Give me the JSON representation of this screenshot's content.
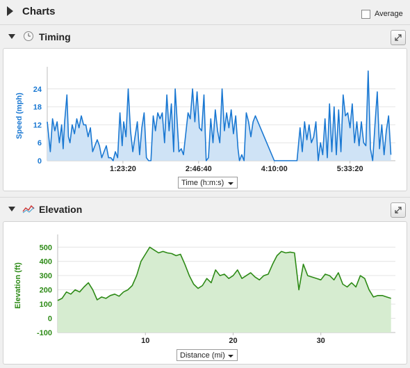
{
  "header": {
    "title": "Charts",
    "average_label": "Average",
    "average_checked": false
  },
  "timing": {
    "title": "Timing",
    "x_select": "Time (h:m:s)",
    "chart_data": {
      "type": "area",
      "ylabel": "Speed (mph)",
      "ylim": [
        0,
        30
      ],
      "yticks": [
        0,
        6,
        12,
        18,
        24
      ],
      "xticks": [
        {
          "label": "1:23:20",
          "value": 5000
        },
        {
          "label": "2:46:40",
          "value": 10000
        },
        {
          "label": "4:10:00",
          "value": 15000
        },
        {
          "label": "5:33:20",
          "value": 20000
        }
      ],
      "xlim": [
        0,
        23000
      ],
      "color": "#1a78d2",
      "fill": "#cfe3f6",
      "x": [
        0,
        200,
        350,
        500,
        650,
        800,
        950,
        1050,
        1150,
        1300,
        1400,
        1500,
        1650,
        1800,
        1950,
        2100,
        2250,
        2400,
        2550,
        2700,
        2850,
        3000,
        3150,
        3300,
        3450,
        3600,
        3750,
        3900,
        4050,
        4200,
        4350,
        4500,
        4650,
        4800,
        4950,
        5050,
        5200,
        5350,
        5500,
        5650,
        5800,
        5950,
        6100,
        6250,
        6400,
        6550,
        6700,
        6850,
        7000,
        7150,
        7300,
        7450,
        7600,
        7750,
        7900,
        8050,
        8200,
        8350,
        8450,
        8550,
        8700,
        8850,
        9000,
        9150,
        9300,
        9450,
        9600,
        9750,
        9900,
        10050,
        10200,
        10350,
        10500,
        10650,
        10800,
        10950,
        11100,
        11250,
        11400,
        11550,
        11700,
        11850,
        12000,
        12150,
        12300,
        12450,
        12600,
        12700,
        12850,
        13000,
        13150,
        13300,
        13450,
        13600,
        13750,
        15000,
        16500,
        16700,
        16850,
        17000,
        17150,
        17300,
        17450,
        17600,
        17750,
        17900,
        18050,
        18200,
        18350,
        18500,
        18650,
        18800,
        18950,
        19100,
        19250,
        19400,
        19550,
        19700,
        19850,
        20000,
        20150,
        20300,
        20450,
        20600,
        20750,
        20900,
        21050,
        21200,
        21350,
        21500,
        21650,
        21800,
        21950,
        22100,
        22250,
        22400,
        22550,
        22700
      ],
      "y": [
        13,
        3,
        14,
        10,
        13,
        6,
        12,
        4,
        13,
        22,
        8,
        6,
        12,
        9,
        14,
        11,
        15,
        12,
        12,
        8,
        11,
        3,
        5,
        7,
        5,
        1,
        3,
        5,
        1,
        1,
        0,
        3,
        1,
        16,
        5,
        13,
        8,
        24,
        10,
        3,
        8,
        13,
        2,
        11,
        16,
        1,
        0,
        0,
        15,
        10,
        16,
        14,
        16,
        6,
        22,
        10,
        19,
        3,
        24,
        16,
        3,
        4,
        2,
        9,
        16,
        14,
        24,
        13,
        23,
        11,
        10,
        22,
        0,
        1,
        14,
        6,
        17,
        10,
        6,
        24,
        10,
        16,
        11,
        17,
        9,
        15,
        4,
        0,
        2,
        0,
        16,
        13,
        8,
        13,
        15,
        0,
        0,
        11,
        3,
        13,
        7,
        12,
        6,
        8,
        13,
        0,
        6,
        2,
        14,
        1,
        19,
        3,
        18,
        2,
        17,
        3,
        22,
        15,
        16,
        11,
        19,
        6,
        13,
        5,
        13,
        6,
        5,
        30,
        4,
        0,
        12,
        23,
        4,
        12,
        2,
        10,
        15,
        2
      ]
    }
  },
  "elevation": {
    "title": "Elevation",
    "x_select": "Distance (mi)",
    "chart_data": {
      "type": "area",
      "ylabel": "Elevation (ft)",
      "ylim": [
        -100,
        560
      ],
      "yticks": [
        -100,
        0,
        100,
        200,
        300,
        400,
        500
      ],
      "xticks": [
        10,
        20,
        30
      ],
      "xlim": [
        0,
        38.5
      ],
      "color": "#2d8a16",
      "fill": "#d6ecd0",
      "x": [
        0,
        0.5,
        1,
        1.5,
        2,
        2.5,
        3,
        3.5,
        4,
        4.5,
        5,
        5.5,
        6,
        6.5,
        7,
        7.5,
        8,
        8.5,
        9,
        9.5,
        10,
        10.5,
        11,
        11.5,
        12,
        12.5,
        13,
        13.5,
        14,
        14.5,
        15,
        15.5,
        16,
        16.5,
        17,
        17.5,
        18,
        18.5,
        19,
        19.5,
        20,
        20.5,
        21,
        21.5,
        22,
        22.5,
        23,
        23.5,
        24,
        24.5,
        25,
        25.5,
        26,
        26.5,
        27,
        27.5,
        28,
        28.5,
        29,
        29.5,
        30,
        30.5,
        31,
        31.5,
        32,
        32.5,
        33,
        33.5,
        34,
        34.5,
        35,
        35.5,
        36,
        36.5,
        37,
        37.5,
        38
      ],
      "y": [
        125,
        140,
        185,
        170,
        200,
        185,
        220,
        250,
        200,
        130,
        150,
        140,
        160,
        170,
        155,
        185,
        200,
        230,
        300,
        400,
        450,
        500,
        480,
        460,
        470,
        460,
        455,
        440,
        450,
        380,
        300,
        240,
        210,
        230,
        280,
        250,
        340,
        300,
        310,
        280,
        300,
        340,
        280,
        300,
        320,
        290,
        270,
        300,
        310,
        380,
        440,
        470,
        460,
        465,
        460,
        200,
        380,
        300,
        290,
        280,
        270,
        310,
        300,
        270,
        320,
        240,
        220,
        250,
        220,
        300,
        280,
        200,
        150,
        160,
        160,
        150,
        140
      ]
    }
  }
}
